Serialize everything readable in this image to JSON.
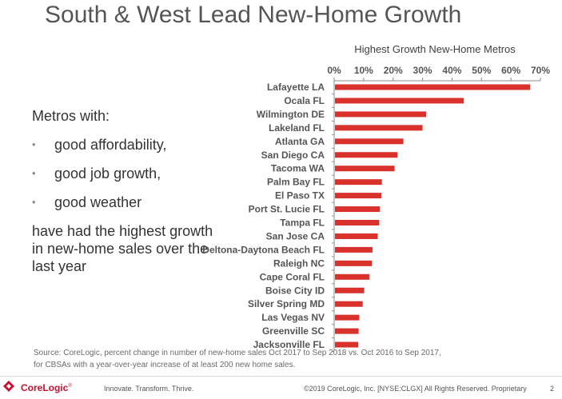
{
  "slide": {
    "title": "South & West Lead New-Home Growth"
  },
  "left_panel": {
    "intro": "Metros with:",
    "bullet_char": "•",
    "bullets": [
      "good affordability,",
      "good job growth,",
      "good weather"
    ],
    "outro": "have had the highest growth in new-home sales over the last year"
  },
  "chart_data": {
    "type": "bar",
    "orientation": "horizontal",
    "title": "Highest Growth New-Home Metros",
    "xlabel": "",
    "ylabel": "",
    "categories": [
      "Lafayette LA",
      "Ocala FL",
      "Wilmington DE",
      "Lakeland FL",
      "Atlanta GA",
      "San Diego CA",
      "Tacoma WA",
      "Palm Bay FL",
      "El Paso TX",
      "Port St. Lucie FL",
      "Tampa FL",
      "San Jose CA",
      "Deltona-Daytona Beach FL",
      "Raleigh NC",
      "Cape Coral FL",
      "Boise City ID",
      "Silver Spring MD",
      "Las Vegas NV",
      "Greenville SC",
      "Jacksonville FL"
    ],
    "values": [
      0.665,
      0.44,
      0.312,
      0.3,
      0.235,
      0.215,
      0.205,
      0.162,
      0.16,
      0.155,
      0.153,
      0.148,
      0.13,
      0.128,
      0.12,
      0.102,
      0.097,
      0.085,
      0.083,
      0.082
    ],
    "xlim": [
      0,
      0.7
    ],
    "ticks": [
      "0%",
      "10%",
      "20%",
      "30%",
      "40%",
      "50%",
      "60%",
      "70%"
    ],
    "tick_values": [
      0,
      0.1,
      0.2,
      0.3,
      0.4,
      0.5,
      0.6,
      0.7
    ],
    "axis_position": "top",
    "grid": false,
    "legend": "none",
    "bar_color": "#d9312b"
  },
  "source": {
    "text": "Source: CoreLogic, percent change in number of new-home sales Oct 2017 to Sep 2018 vs. Oct 2016 to Sep 2017, for CBSAs with a year-over-year increase of at least 200 new home sales."
  },
  "footer": {
    "logo_text": "CoreLogic",
    "logo_tm": "®",
    "tagline": "Innovate. Transform. Thrive.",
    "copyright": "©2019 CoreLogic, Inc. [NYSE:CLGX] All Rights Reserved. Proprietary",
    "page_number": "2",
    "brand_color": "#c8102e"
  }
}
